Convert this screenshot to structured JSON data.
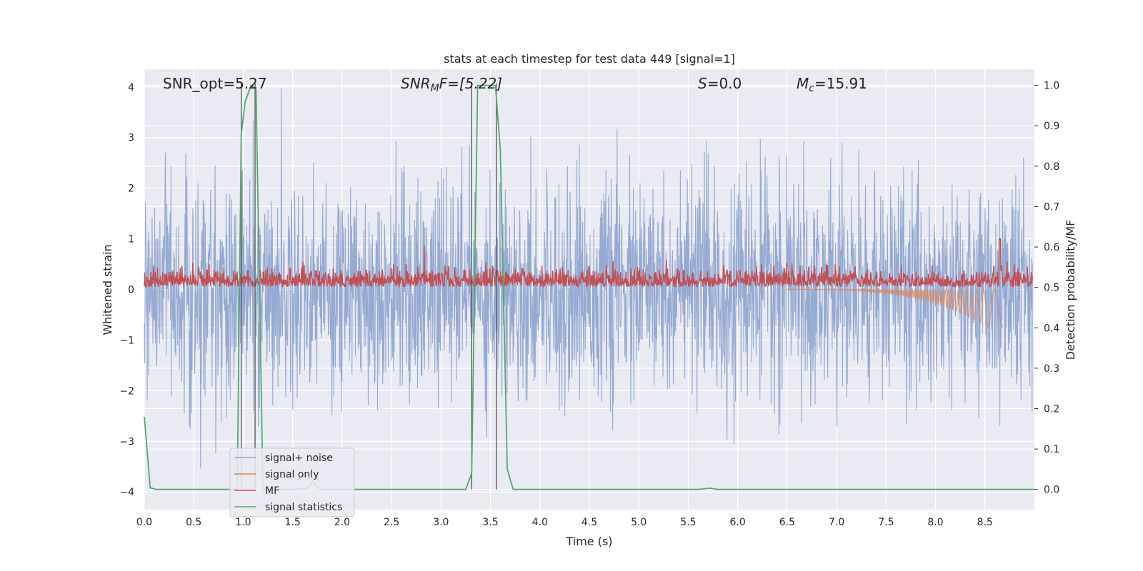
{
  "chart_data": {
    "type": "line",
    "title": "stats at each timestep for test data 449 [signal=1]",
    "xlabel": "Time (s)",
    "ylabel": "Whitened strain",
    "y2label": "Detection probability/MF",
    "xlim": [
      0.0,
      9.0
    ],
    "ylim": [
      -4.35,
      4.35
    ],
    "y2lim": [
      -0.05,
      1.04
    ],
    "xticks": [
      "0.0",
      "0.5",
      "1.0",
      "1.5",
      "2.0",
      "2.5",
      "3.0",
      "3.5",
      "4.0",
      "4.5",
      "5.0",
      "5.5",
      "6.0",
      "6.5",
      "7.0",
      "7.5",
      "8.0",
      "8.5"
    ],
    "yticks": [
      "4",
      "3",
      "2",
      "1",
      "0",
      "−1",
      "−2",
      "−3",
      "−4"
    ],
    "y2ticks": [
      "1.0",
      "0.9",
      "0.8",
      "0.7",
      "0.6",
      "0.5",
      "0.4",
      "0.3",
      "0.2",
      "0.1",
      "0.0"
    ],
    "annotations": {
      "snr_opt": "SNR_opt=5.27",
      "snr_mf_main": "SNR",
      "snr_mf_sub": "M",
      "snr_mf_rest": "F=[5.22]",
      "s_main": "S",
      "s_rest": "=0.0",
      "mc_main": "M",
      "mc_sub": "c",
      "mc_rest": "=15.91"
    },
    "grid": true,
    "legend_position": "lower-left",
    "legend": [
      "signal+ noise",
      "signal only",
      "MF",
      "signal statistics"
    ],
    "colors": {
      "background": "#eaeaf2",
      "grid": "#ffffff",
      "signal_noise": "#8fa6d0",
      "signal_only": "#dd8452",
      "mf": "#c44e52",
      "signal_statistics": "#55a868",
      "vlines": "#555555"
    },
    "vertical_lines": [
      0.98,
      1.12,
      3.31,
      3.56
    ],
    "signal_only": {
      "start": 6.5,
      "end": 8.68,
      "peak_min": -0.95
    },
    "signal_noise": {
      "amp_max": 4.0,
      "amp_min": -3.95
    },
    "mf": {
      "baseline": 0.05,
      "typical_max": 0.6,
      "peak_time": 8.65,
      "peak_value": 1.0
    },
    "signal_statistics": {
      "x": [
        0.0,
        0.06,
        0.12,
        0.2,
        0.4,
        0.6,
        0.85,
        0.94,
        0.98,
        1.02,
        1.08,
        1.13,
        1.2,
        1.24,
        1.3,
        1.5,
        1.65,
        1.7,
        1.78,
        2.0,
        2.5,
        3.0,
        3.25,
        3.31,
        3.37,
        3.45,
        3.55,
        3.6,
        3.67,
        3.73,
        4.0,
        5.0,
        5.6,
        5.72,
        5.8,
        6.0,
        7.0,
        8.0,
        9.0
      ],
      "y": [
        0.18,
        0.004,
        0.0,
        0.0,
        0.0,
        0.0,
        0.0,
        0.0,
        0.88,
        0.96,
        1.0,
        0.99,
        0.0,
        0.0,
        0.0,
        0.0,
        0.003,
        0.02,
        0.0,
        0.0,
        0.0,
        0.0,
        0.0,
        0.04,
        1.0,
        1.0,
        1.0,
        0.84,
        0.05,
        0.0,
        0.0,
        0.0,
        0.0,
        0.003,
        0.0,
        0.0,
        0.0,
        0.0,
        0.0
      ]
    }
  }
}
